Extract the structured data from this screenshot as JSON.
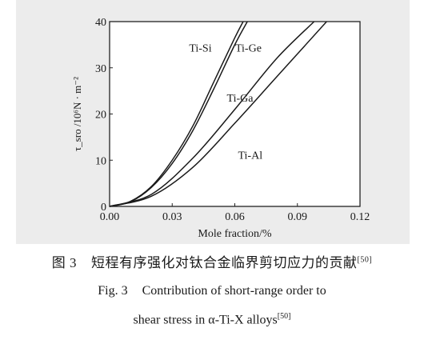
{
  "chart_data": {
    "type": "line",
    "xlabel": "Mole fraction/%",
    "ylabel": "τ_sro /10⁶N · m⁻²",
    "xlim": [
      0.0,
      0.12
    ],
    "ylim": [
      0,
      40
    ],
    "x_ticks": [
      "0.00",
      "0.03",
      "0.06",
      "0.09",
      "0.12"
    ],
    "y_ticks": [
      "0",
      "10",
      "20",
      "30",
      "40"
    ],
    "grid": false,
    "series": [
      {
        "name": "Ti-Si",
        "x": [
          0,
          0.01,
          0.02,
          0.03,
          0.04,
          0.05,
          0.06,
          0.064
        ],
        "y": [
          0,
          1.1,
          4.3,
          10.0,
          17.5,
          27.0,
          36.5,
          40
        ]
      },
      {
        "name": "Ti-Ge",
        "x": [
          0,
          0.01,
          0.02,
          0.03,
          0.04,
          0.05,
          0.06,
          0.066
        ],
        "y": [
          0,
          1.0,
          4.1,
          9.3,
          16.5,
          25.5,
          35.0,
          40
        ]
      },
      {
        "name": "Ti-Ga",
        "x": [
          0,
          0.02,
          0.04,
          0.06,
          0.08,
          0.098
        ],
        "y": [
          0,
          2.6,
          10.5,
          21.0,
          32.0,
          40
        ]
      },
      {
        "name": "Ti-Al",
        "x": [
          0,
          0.02,
          0.04,
          0.06,
          0.08,
          0.104
        ],
        "y": [
          0,
          2.2,
          8.5,
          18.0,
          28.0,
          40
        ]
      }
    ],
    "annotations": [
      {
        "text": "Ti-Si",
        "x": 0.0435,
        "y": 33.5
      },
      {
        "text": "Ti-Ge",
        "x": 0.0665,
        "y": 33.5
      },
      {
        "text": "Ti-Ga",
        "x": 0.0625,
        "y": 22.7
      },
      {
        "text": "Ti-Al",
        "x": 0.0674,
        "y": 10.3
      }
    ]
  },
  "caption": {
    "cn_label": "图 3",
    "cn_text": "短程有序强化对钛合金临界剪切应力的贡献",
    "cn_ref": "[50]",
    "en_label": "Fig. 3",
    "en_line1": "Contribution of short-range order to",
    "en_line2": "shear stress in α-Ti-X alloys",
    "en_ref": "[50]"
  }
}
